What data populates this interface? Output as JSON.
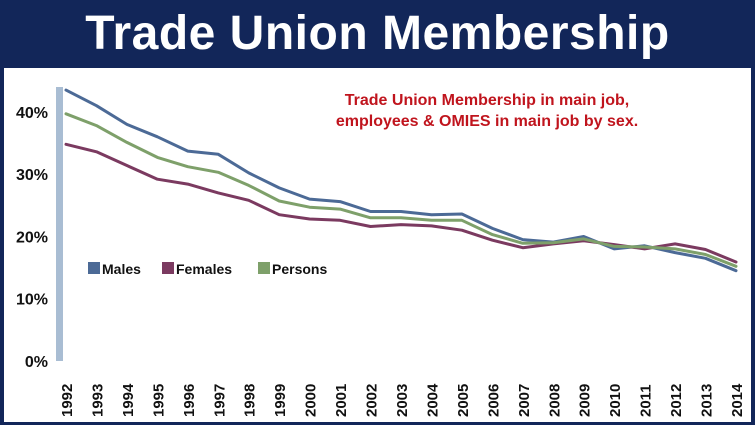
{
  "header": {
    "title": "Trade Union Membership"
  },
  "annotation": {
    "line1": "Trade Union Membership in main job,",
    "line2": "employees & OMIES in main job by sex."
  },
  "chart_data": {
    "type": "line",
    "categories": [
      "1992",
      "1993",
      "1994",
      "1995",
      "1996",
      "1997",
      "1998",
      "1999",
      "2000",
      "2001",
      "2002",
      "2003",
      "2004",
      "2005",
      "2006",
      "2007",
      "2008",
      "2009",
      "2010",
      "2011",
      "2012",
      "2013",
      "2014"
    ],
    "y_ticks": [
      "0%",
      "10%",
      "20%",
      "30%",
      "40%"
    ],
    "ylim": [
      0,
      44
    ],
    "grid": false,
    "legend_position": "left",
    "series": [
      {
        "name": "Males",
        "color": "#4c6a96",
        "values": [
          43.5,
          41.0,
          38.0,
          36.0,
          33.7,
          33.2,
          30.2,
          27.8,
          26.0,
          25.6,
          24.0,
          24.0,
          23.5,
          23.6,
          21.3,
          19.5,
          19.1,
          20.0,
          18.0,
          18.5,
          17.4,
          16.5,
          14.5
        ]
      },
      {
        "name": "Females",
        "color": "#7b3a60",
        "values": [
          34.8,
          33.6,
          31.4,
          29.2,
          28.4,
          27.0,
          25.8,
          23.5,
          22.8,
          22.6,
          21.6,
          21.9,
          21.7,
          21.0,
          19.4,
          18.2,
          18.8,
          19.3,
          18.7,
          18.0,
          18.8,
          17.9,
          15.9
        ]
      },
      {
        "name": "Persons",
        "color": "#7ea06a",
        "values": [
          39.7,
          37.8,
          35.1,
          32.7,
          31.2,
          30.3,
          28.2,
          25.7,
          24.7,
          24.4,
          23.0,
          23.0,
          22.6,
          22.6,
          20.3,
          18.9,
          19.0,
          19.6,
          18.4,
          18.3,
          18.0,
          17.1,
          15.2
        ]
      }
    ]
  }
}
